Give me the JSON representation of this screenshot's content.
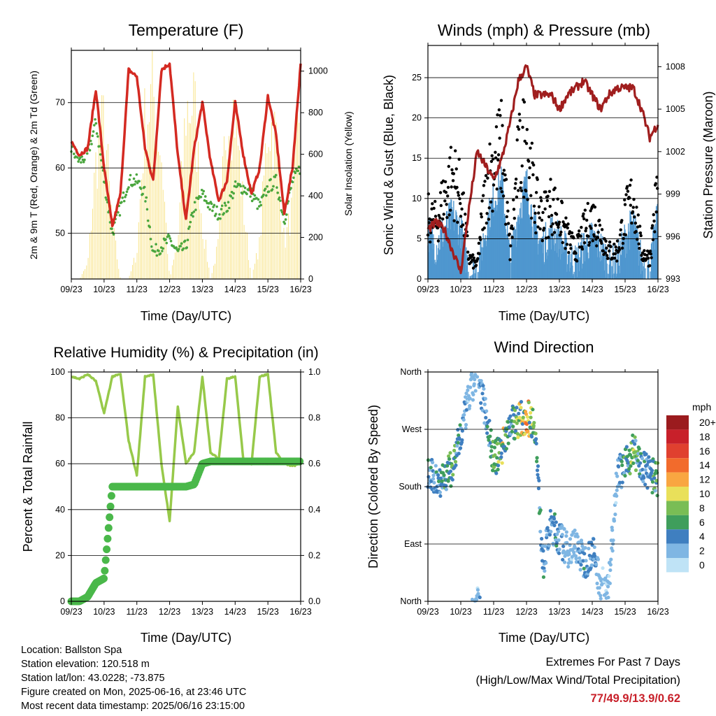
{
  "x_ticks": [
    "09/23",
    "10/23",
    "11/23",
    "12/23",
    "13/23",
    "14/23",
    "15/23",
    "16/23"
  ],
  "panels": {
    "temperature": {
      "title": "Temperature (F)",
      "xlabel": "Time (Day/UTC)",
      "ylabel_left": "2m & 9m T (Red, Orange) & 2m Td (Green)",
      "ylabel_right": "Solar Insolation (Yellow)",
      "left_ticks": [
        "50",
        "60",
        "70"
      ],
      "right_ticks": [
        "0",
        "200",
        "400",
        "600",
        "800",
        "1000"
      ]
    },
    "winds": {
      "title": "Winds (mph) & Pressure (mb)",
      "xlabel": "Time (Day/UTC)",
      "ylabel_left": "Sonic Wind & Gust (Blue, Black)",
      "ylabel_right": "Station Pressure (Maroon)",
      "left_ticks": [
        "0",
        "5",
        "10",
        "15",
        "20",
        "25"
      ],
      "right_ticks": [
        "993",
        "996",
        "999",
        "1002",
        "1005",
        "1008"
      ]
    },
    "humidity": {
      "title": "Relative Humidity (%) & Precipitation (in)",
      "xlabel": "Time (Day/UTC)",
      "ylabel_left": "Percent & Total Rainfall",
      "left_ticks": [
        "0",
        "20",
        "40",
        "60",
        "80",
        "100"
      ],
      "right_ticks": [
        "0.0",
        "0.2",
        "0.4",
        "0.6",
        "0.8",
        "1.0"
      ]
    },
    "direction": {
      "title": "Wind Direction",
      "xlabel": "Time (Day/UTC)",
      "ylabel_left": "Direction (Colored By Speed)",
      "left_ticks": [
        "North",
        "East",
        "South",
        "West",
        "North"
      ],
      "legend_title": "mph",
      "legend_labels": [
        "20+",
        "18",
        "16",
        "14",
        "12",
        "10",
        "8",
        "6",
        "4",
        "2",
        "0"
      ],
      "legend_colors": [
        "#9b1b1e",
        "#c8202a",
        "#e0402f",
        "#f26b2c",
        "#f9a641",
        "#e9e05a",
        "#79bd55",
        "#3f9e5c",
        "#3f7fc0",
        "#7fb6e3",
        "#bfe3f6"
      ]
    }
  },
  "info": {
    "location": "Location: Ballston Spa",
    "elevation": "Station elevation: 120.518 m",
    "latlon": "Station lat/lon: 43.0228; -73.875",
    "created": "Figure created on Mon, 2025-06-16, at 23:46 UTC",
    "latest": "Most recent data timestamp: 2025/06/16 23:15:00"
  },
  "extremes": {
    "title": "Extremes For Past 7 Days",
    "subtitle": "(High/Low/Max Wind/Total Precipitation)",
    "values": "77/49.9/13.9/0.62"
  },
  "colors": {
    "temp": "#d42a22",
    "dewpoint": "#4aa63e",
    "solar": "#f5d23c",
    "wind": "#4f97cf",
    "gust": "#000000",
    "pressure": "#a01e1e",
    "rh": "#97c94a",
    "precip": "#4ab84a"
  },
  "chart_data": [
    {
      "type": "line",
      "name": "temperature",
      "x": [
        0,
        0.25,
        0.5,
        0.75,
        1,
        1.25,
        1.5,
        1.75,
        2,
        2.25,
        2.5,
        2.75,
        3,
        3.25,
        3.5,
        3.75,
        4,
        4.25,
        4.5,
        4.75,
        5,
        5.25,
        5.5,
        5.75,
        6,
        6.25,
        6.5,
        6.75,
        7
      ],
      "series": [
        {
          "values": [
            64,
            62,
            63,
            72,
            60,
            51,
            56,
            75,
            74,
            63,
            58,
            75,
            76,
            62,
            52,
            63,
            70,
            61,
            55,
            58,
            70,
            62,
            56,
            60,
            71,
            65,
            53,
            60,
            76
          ]
        },
        {
          "values": [
            63,
            61,
            62,
            67,
            58,
            50,
            54,
            58,
            58,
            56,
            47,
            48,
            49,
            47,
            48,
            54,
            56,
            54,
            53,
            54,
            57,
            57,
            56,
            54,
            57,
            58,
            52,
            58,
            60
          ]
        },
        {
          "values": [
            0,
            0,
            80,
            650,
            900,
            300,
            0,
            0,
            150,
            900,
            1050,
            700,
            0,
            200,
            950,
            1000,
            300,
            0,
            200,
            950,
            950,
            400,
            0,
            200,
            900,
            800,
            200,
            400,
            1050
          ]
        }
      ],
      "ylim": [
        43,
        78
      ],
      "ylim_right": [
        0,
        1100
      ]
    },
    {
      "type": "scatter",
      "name": "winds",
      "x": [
        0,
        0.25,
        0.5,
        0.75,
        1,
        1.25,
        1.5,
        1.75,
        2,
        2.25,
        2.5,
        2.75,
        3,
        3.25,
        3.5,
        3.75,
        4,
        4.25,
        4.5,
        4.75,
        5,
        5.25,
        5.5,
        5.75,
        6,
        6.25,
        6.5,
        6.75,
        7
      ],
      "series": [
        {
          "values": [
            6,
            4,
            6,
            8,
            6,
            1,
            1,
            6,
            10,
            12,
            2,
            8,
            12,
            6,
            4,
            6,
            5,
            3,
            2,
            4,
            5,
            4,
            2,
            2,
            5,
            7,
            2,
            1,
            8
          ]
        },
        {
          "values": [
            9,
            8,
            12,
            15,
            12,
            3,
            2,
            13,
            17,
            19,
            4,
            17,
            21,
            11,
            9,
            11,
            9,
            6,
            4,
            7,
            9,
            7,
            4,
            4,
            9,
            12,
            4,
            3,
            14
          ]
        },
        {
          "values": [
            996.5,
            997,
            996.5,
            995,
            993.5,
            998,
            1002,
            1001,
            1000,
            1001.5,
            1004,
            1007,
            1008,
            1006,
            1006,
            1006,
            1005,
            1006,
            1006.5,
            1007,
            1006,
            1005,
            1006,
            1006.5,
            1006.5,
            1006.5,
            1005,
            1003,
            1004
          ]
        }
      ],
      "ylim": [
        0,
        29
      ],
      "ylim_right": [
        993,
        1009.5
      ]
    },
    {
      "type": "line",
      "name": "humidity",
      "x": [
        0,
        0.25,
        0.5,
        0.75,
        1,
        1.25,
        1.5,
        1.75,
        2,
        2.25,
        2.5,
        2.75,
        3,
        3.25,
        3.5,
        3.75,
        4,
        4.25,
        4.5,
        4.75,
        5,
        5.25,
        5.5,
        5.75,
        6,
        6.25,
        6.5,
        6.75,
        7
      ],
      "series": [
        {
          "values": [
            98,
            97,
            99,
            96,
            82,
            98,
            99,
            70,
            55,
            98,
            99,
            60,
            35,
            85,
            60,
            65,
            98,
            65,
            62,
            97,
            98,
            62,
            60,
            98,
            99,
            65,
            60,
            59,
            60
          ]
        },
        {
          "values": [
            0.0,
            0.0,
            0.02,
            0.08,
            0.1,
            0.5,
            0.5,
            0.5,
            0.5,
            0.5,
            0.5,
            0.5,
            0.5,
            0.5,
            0.5,
            0.51,
            0.6,
            0.61,
            0.61,
            0.61,
            0.61,
            0.61,
            0.61,
            0.61,
            0.61,
            0.61,
            0.61,
            0.61,
            0.61
          ]
        }
      ],
      "ylim": [
        0,
        100
      ],
      "ylim_right": [
        0,
        1.0
      ]
    },
    {
      "type": "scatter",
      "name": "direction",
      "x": [
        0,
        0.25,
        0.5,
        0.75,
        1,
        1.25,
        1.5,
        1.75,
        2,
        2.25,
        2.5,
        2.75,
        3,
        3.25,
        3.5,
        3.75,
        4,
        4.25,
        4.5,
        4.75,
        5,
        5.25,
        5.5,
        5.75,
        6,
        6.25,
        6.5,
        6.75,
        7
      ],
      "series": [
        {
          "values": [
            200,
            190,
            195,
            210,
            260,
            320,
            360,
            300,
            220,
            240,
            280,
            285,
            290,
            280,
            60,
            120,
            100,
            80,
            90,
            60,
            80,
            30,
            20,
            200,
            210,
            240,
            210,
            200,
            190
          ]
        },
        {
          "values": [
            4,
            4,
            6,
            8,
            4,
            2,
            2,
            4,
            8,
            10,
            4,
            8,
            12,
            6,
            4,
            4,
            4,
            2,
            2,
            4,
            4,
            2,
            2,
            2,
            6,
            8,
            4,
            4,
            8
          ]
        }
      ],
      "ylim": [
        0,
        360
      ]
    }
  ]
}
